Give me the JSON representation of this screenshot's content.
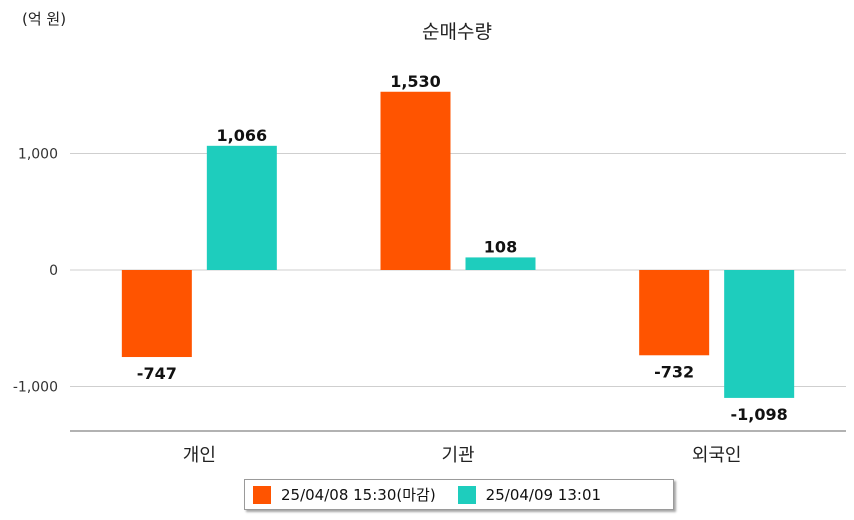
{
  "chart_data": {
    "type": "bar",
    "title": "순매수량",
    "unit_label": "(억 원)",
    "categories": [
      "개인",
      "기관",
      "외국인"
    ],
    "series": [
      {
        "name": "25/04/08 15:30(마감)",
        "color": "#FF5400",
        "values": [
          -747,
          1530,
          -732
        ],
        "labels": [
          "-747",
          "1,530",
          "-732"
        ]
      },
      {
        "name": "25/04/09 13:01",
        "color": "#1ECDBD",
        "values": [
          1066,
          108,
          -1098
        ],
        "labels": [
          "1,066",
          "108",
          "-1,098"
        ]
      }
    ],
    "ylim": [
      -1380,
      2000
    ],
    "yticks": [
      1000,
      0,
      -1000
    ],
    "ytick_labels": [
      "1,000",
      "0",
      "-1,000"
    ],
    "grid": true,
    "legend_position": "bottom"
  }
}
